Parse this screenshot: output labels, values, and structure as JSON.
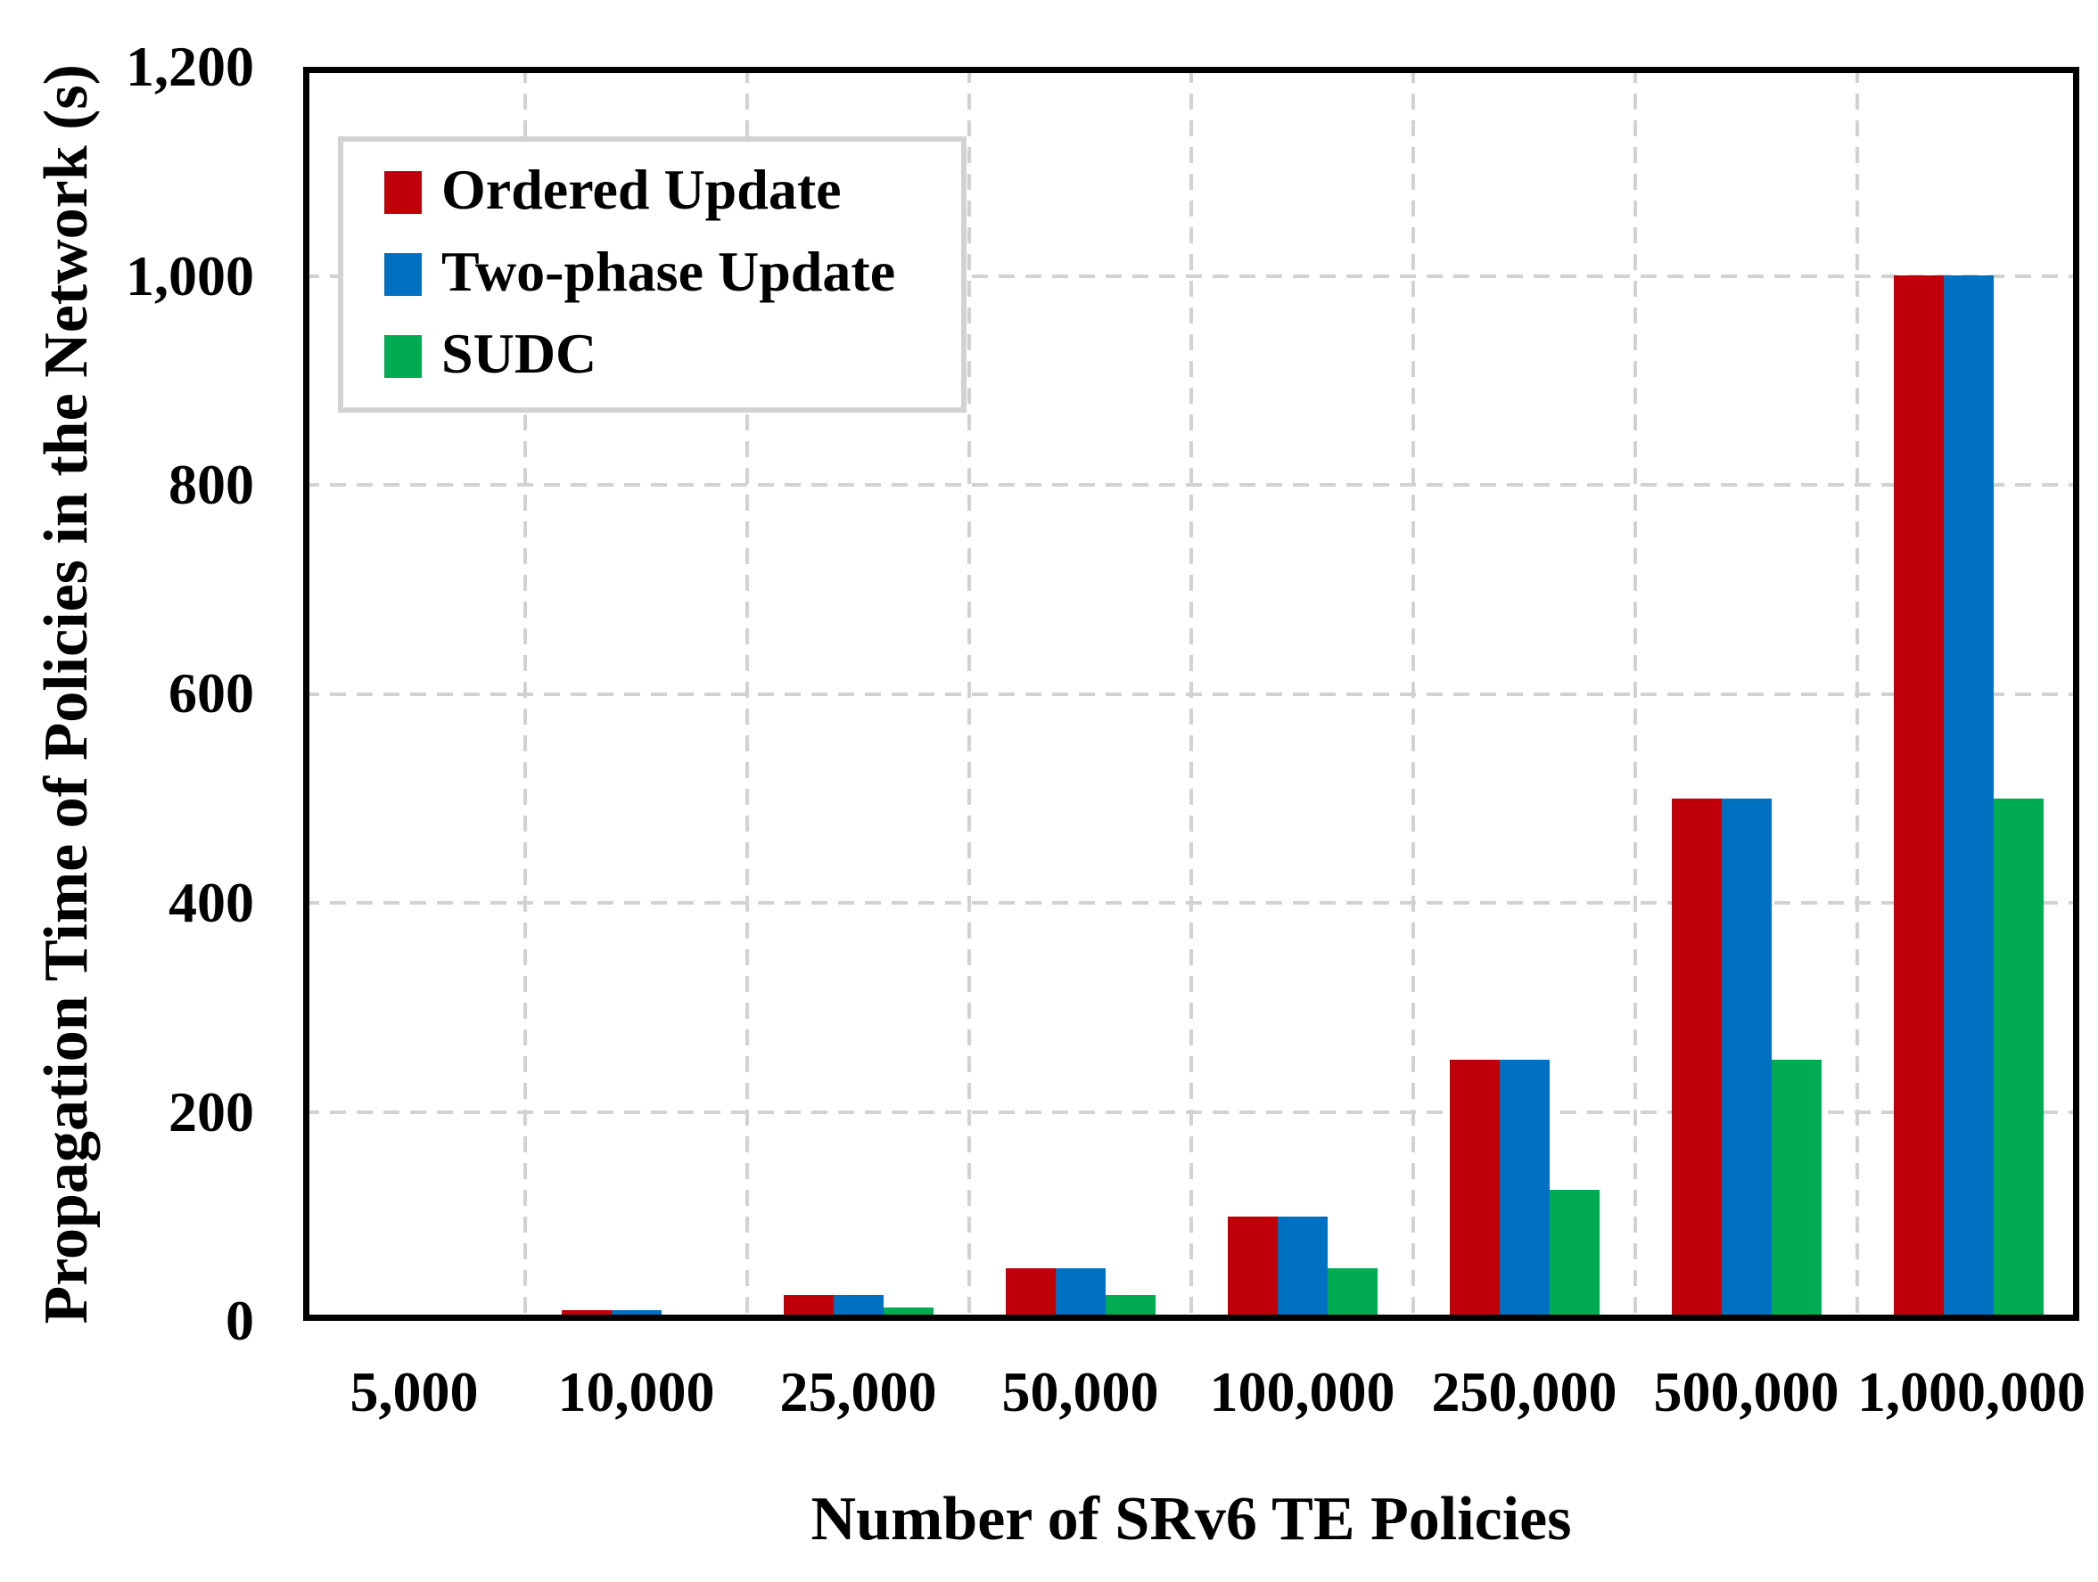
{
  "figure": {
    "background": "#ffffff",
    "plot_background": "#ffffff",
    "axis_color": "#000000"
  },
  "chart_data": {
    "type": "bar",
    "title": "",
    "xlabel": "Number of SRv6 TE Policies",
    "ylabel": "Propagation Time of Policies in the Network (s)",
    "categories": [
      "5,000",
      "10,000",
      "25,000",
      "50,000",
      "100,000",
      "250,000",
      "500,000",
      "1,000,000"
    ],
    "series": [
      {
        "name": "Ordered Update",
        "color": "#c00008",
        "values": [
          5,
          10,
          25,
          50,
          100,
          250,
          500,
          1000
        ]
      },
      {
        "name": "Two-phase Update",
        "color": "#0070c0",
        "values": [
          5,
          10,
          25,
          50,
          100,
          250,
          500,
          1000
        ]
      },
      {
        "name": "SUDC",
        "color": "#00ab52",
        "values": [
          2.5,
          5,
          12.5,
          25,
          50,
          125,
          250,
          500
        ]
      }
    ],
    "ylim": [
      0,
      1200
    ],
    "yticks": [
      {
        "value": 0,
        "label": "0"
      },
      {
        "value": 200,
        "label": "200"
      },
      {
        "value": 400,
        "label": "400"
      },
      {
        "value": 600,
        "label": "600"
      },
      {
        "value": 800,
        "label": "800"
      },
      {
        "value": 1000,
        "label": "1,000"
      },
      {
        "value": 1200,
        "label": "1,200"
      }
    ],
    "grid": {
      "horizontal": true,
      "vertical": true,
      "style": "dashed",
      "color": "#d2d2d2"
    },
    "legend": {
      "position": "top-left",
      "border_color": "#d2d2d2",
      "background": "#ffffff"
    }
  }
}
